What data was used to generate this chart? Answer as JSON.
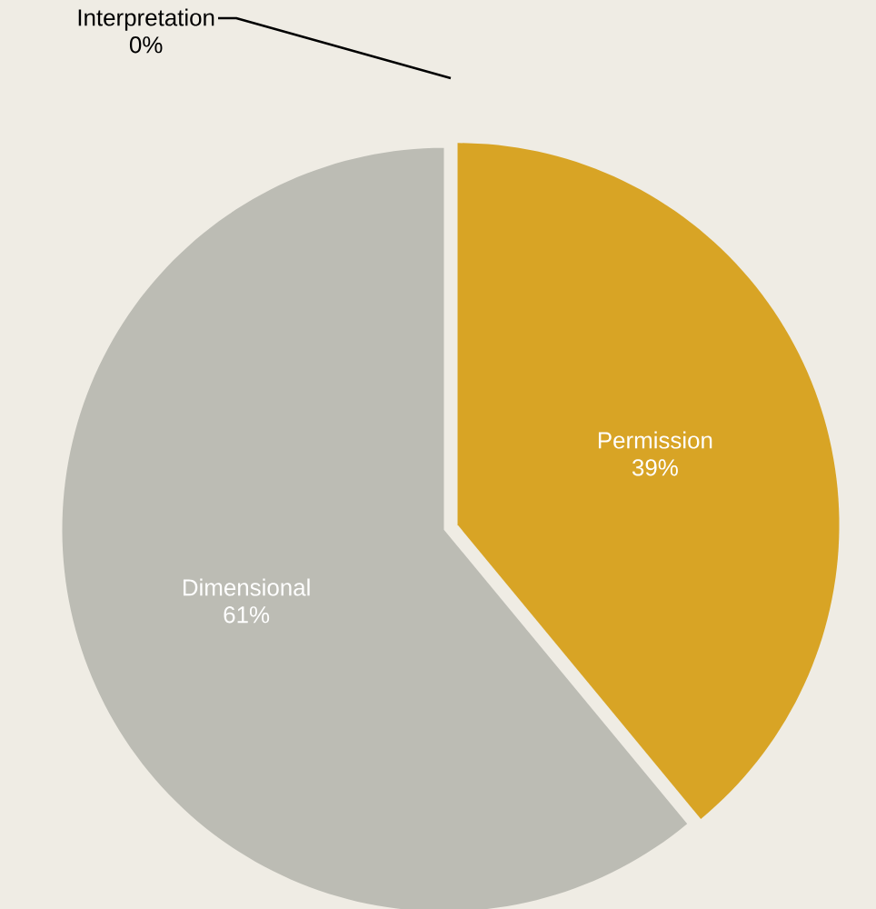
{
  "chart_data": {
    "type": "pie",
    "categories": [
      "Permission",
      "Dimensional",
      "Interpretation"
    ],
    "values": [
      39,
      61,
      0
    ],
    "colors": [
      "#d8a425",
      "#bcbcb4",
      "#000000"
    ],
    "value_labels": [
      "39%",
      "61%",
      "0%"
    ]
  }
}
